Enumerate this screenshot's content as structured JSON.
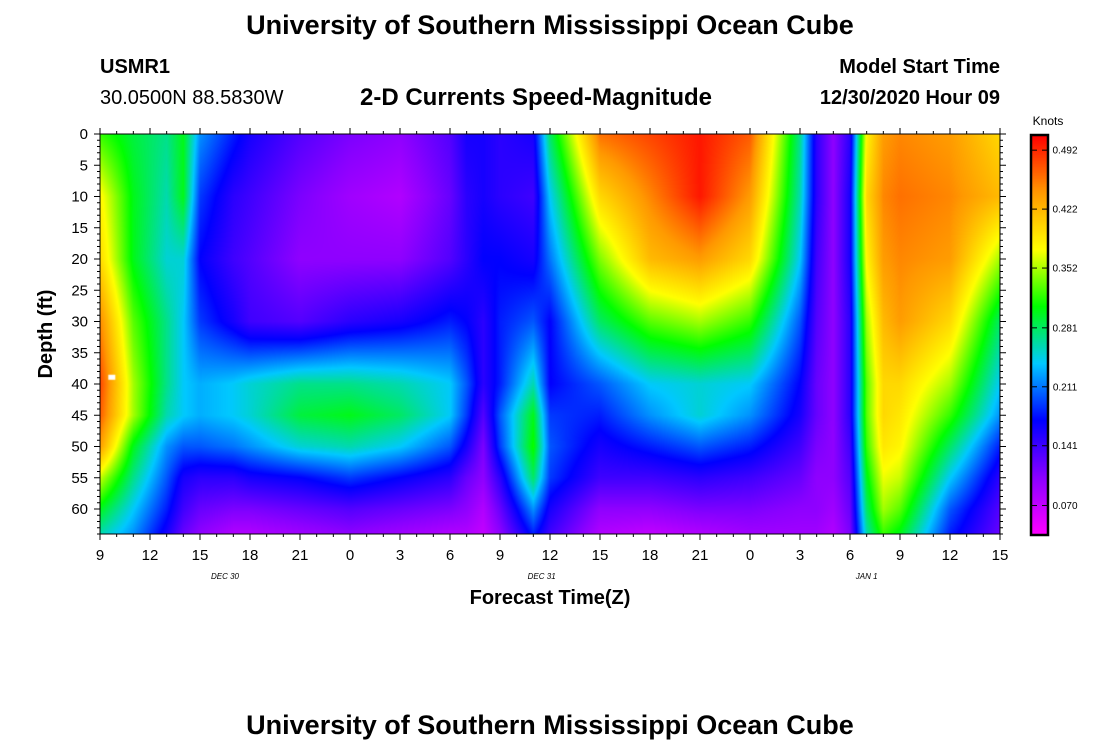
{
  "header": {
    "title_top": "University of Southern Mississippi Ocean Cube",
    "station_id": "USMR1",
    "coords": "30.0500N 88.5830W",
    "subtitle": "2-D Currents Speed-Magnitude",
    "model_label": "Model Start Time",
    "model_time": "12/30/2020 Hour 09",
    "title_bottom": "University of Southern Mississippi Ocean Cube"
  },
  "colors": {
    "colormap": [
      "#ff00ff",
      "#8a00ff",
      "#0000ff",
      "#00c8ff",
      "#00ff00",
      "#ffff00",
      "#ff9900",
      "#ff0000"
    ]
  },
  "chart_data": {
    "type": "heatmap",
    "xlabel": "Forecast Time(Z)",
    "ylabel": "Depth (ft)",
    "x_tick_labels": [
      "9",
      "12",
      "15",
      "18",
      "21",
      "0",
      "3",
      "6",
      "9",
      "12",
      "15",
      "18",
      "21",
      "0",
      "3",
      "6",
      "9",
      "12",
      "15"
    ],
    "date_labels": [
      {
        "label": "DEC 30",
        "hours_from_start": 7.5
      },
      {
        "label": "DEC 31",
        "hours_from_start": 26.5
      },
      {
        "label": "JAN 1",
        "hours_from_start": 46
      }
    ],
    "xlim_hours": [
      0,
      54
    ],
    "y_ticks": [
      0,
      5,
      10,
      15,
      20,
      25,
      30,
      35,
      40,
      45,
      50,
      55,
      60
    ],
    "ylim": [
      0,
      64
    ],
    "colorbar": {
      "label": "Knots",
      "ticks": [
        "0.492",
        "0.422",
        "0.352",
        "0.281",
        "0.211",
        "0.141",
        "0.070"
      ],
      "range": [
        0.035,
        0.51
      ]
    },
    "depth_points": [
      0,
      10,
      20,
      30,
      40,
      45,
      50,
      55,
      60,
      64
    ],
    "time_points": [
      0,
      2,
      4,
      5,
      6,
      8,
      9,
      12,
      15,
      18,
      21,
      22,
      23,
      24,
      26,
      27,
      30,
      33,
      36,
      39,
      42,
      43,
      44,
      45,
      46,
      47,
      48,
      51,
      54
    ],
    "speed": [
      [
        0.32,
        0.29,
        0.27,
        0.3,
        0.22,
        0.18,
        0.16,
        0.13,
        0.11,
        0.1,
        0.13,
        0.16,
        0.16,
        0.15,
        0.16,
        0.28,
        0.46,
        0.48,
        0.5,
        0.47,
        0.27,
        0.15,
        0.1,
        0.15,
        0.38,
        0.44,
        0.45,
        0.44,
        0.4
      ],
      [
        0.38,
        0.3,
        0.26,
        0.3,
        0.19,
        0.15,
        0.14,
        0.11,
        0.09,
        0.08,
        0.12,
        0.15,
        0.16,
        0.15,
        0.14,
        0.24,
        0.4,
        0.45,
        0.5,
        0.44,
        0.26,
        0.15,
        0.1,
        0.16,
        0.4,
        0.45,
        0.46,
        0.45,
        0.42
      ],
      [
        0.4,
        0.3,
        0.25,
        0.25,
        0.17,
        0.14,
        0.13,
        0.1,
        0.1,
        0.1,
        0.13,
        0.15,
        0.17,
        0.17,
        0.16,
        0.21,
        0.34,
        0.42,
        0.44,
        0.4,
        0.24,
        0.14,
        0.1,
        0.16,
        0.38,
        0.44,
        0.45,
        0.44,
        0.35
      ],
      [
        0.45,
        0.33,
        0.27,
        0.24,
        0.19,
        0.16,
        0.14,
        0.13,
        0.15,
        0.16,
        0.18,
        0.17,
        0.15,
        0.18,
        0.2,
        0.17,
        0.28,
        0.33,
        0.35,
        0.32,
        0.2,
        0.13,
        0.1,
        0.15,
        0.35,
        0.42,
        0.44,
        0.4,
        0.28
      ],
      [
        0.48,
        0.35,
        0.27,
        0.24,
        0.23,
        0.24,
        0.25,
        0.27,
        0.27,
        0.26,
        0.24,
        0.2,
        0.15,
        0.18,
        0.26,
        0.17,
        0.2,
        0.24,
        0.25,
        0.24,
        0.17,
        0.12,
        0.1,
        0.15,
        0.33,
        0.4,
        0.4,
        0.35,
        0.24
      ],
      [
        0.47,
        0.35,
        0.26,
        0.24,
        0.23,
        0.24,
        0.25,
        0.29,
        0.3,
        0.28,
        0.24,
        0.19,
        0.13,
        0.2,
        0.3,
        0.19,
        0.18,
        0.22,
        0.25,
        0.22,
        0.16,
        0.12,
        0.1,
        0.15,
        0.33,
        0.4,
        0.39,
        0.32,
        0.22
      ],
      [
        0.44,
        0.3,
        0.22,
        0.2,
        0.2,
        0.21,
        0.22,
        0.25,
        0.26,
        0.24,
        0.2,
        0.16,
        0.11,
        0.19,
        0.31,
        0.2,
        0.16,
        0.18,
        0.2,
        0.18,
        0.14,
        0.11,
        0.1,
        0.14,
        0.32,
        0.39,
        0.38,
        0.28,
        0.18
      ],
      [
        0.36,
        0.27,
        0.2,
        0.16,
        0.15,
        0.15,
        0.16,
        0.17,
        0.19,
        0.17,
        0.15,
        0.12,
        0.1,
        0.15,
        0.28,
        0.19,
        0.14,
        0.14,
        0.15,
        0.14,
        0.12,
        0.1,
        0.1,
        0.13,
        0.3,
        0.37,
        0.36,
        0.24,
        0.15
      ],
      [
        0.3,
        0.24,
        0.18,
        0.14,
        0.12,
        0.11,
        0.11,
        0.12,
        0.13,
        0.12,
        0.11,
        0.1,
        0.08,
        0.12,
        0.22,
        0.16,
        0.1,
        0.1,
        0.11,
        0.11,
        0.1,
        0.1,
        0.09,
        0.12,
        0.28,
        0.35,
        0.33,
        0.2,
        0.13
      ],
      [
        0.26,
        0.22,
        0.16,
        0.12,
        0.1,
        0.08,
        0.08,
        0.09,
        0.1,
        0.09,
        0.08,
        0.08,
        0.07,
        0.1,
        0.18,
        0.14,
        0.08,
        0.07,
        0.08,
        0.09,
        0.09,
        0.09,
        0.08,
        0.11,
        0.26,
        0.32,
        0.3,
        0.18,
        0.12
      ]
    ],
    "marker": {
      "hours_from_start": 0.5,
      "depth_ft": 39
    }
  }
}
